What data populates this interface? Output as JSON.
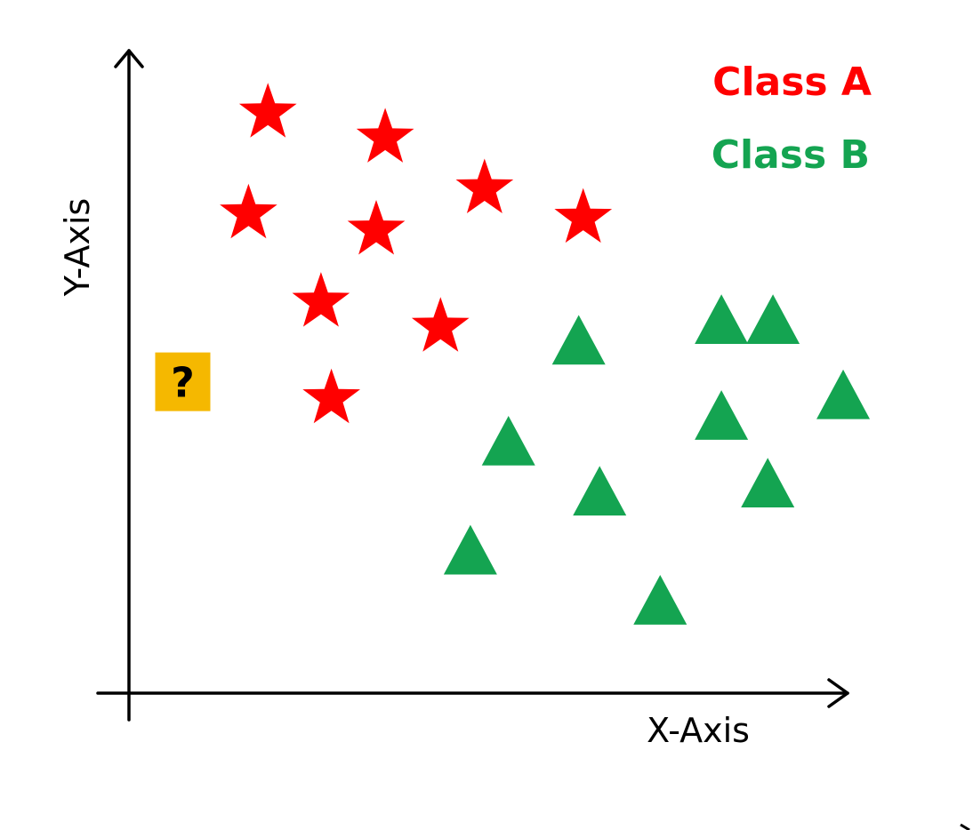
{
  "chart_data": {
    "type": "scatter",
    "title": "",
    "xlabel": "X-Axis",
    "ylabel": "Y-Axis",
    "xlim": [
      0,
      100
    ],
    "ylim": [
      0,
      100
    ],
    "grid": false,
    "legend_position": "top-right",
    "series": [
      {
        "name": "Class A",
        "marker": "star",
        "color": "#ff0000",
        "points": [
          {
            "x": 18.6,
            "y": 92.6
          },
          {
            "x": 34.3,
            "y": 88.6
          },
          {
            "x": 16.0,
            "y": 76.5
          },
          {
            "x": 33.1,
            "y": 73.9
          },
          {
            "x": 47.6,
            "y": 80.5
          },
          {
            "x": 60.8,
            "y": 75.8
          },
          {
            "x": 25.7,
            "y": 62.4
          },
          {
            "x": 41.7,
            "y": 58.4
          },
          {
            "x": 27.1,
            "y": 47.0
          }
        ]
      },
      {
        "name": "Class B",
        "marker": "triangle",
        "color": "#14a451",
        "points": [
          {
            "x": 60.2,
            "y": 56.4
          },
          {
            "x": 79.3,
            "y": 59.7
          },
          {
            "x": 86.2,
            "y": 59.7
          },
          {
            "x": 95.6,
            "y": 47.7
          },
          {
            "x": 79.3,
            "y": 44.4
          },
          {
            "x": 50.8,
            "y": 40.3
          },
          {
            "x": 63.0,
            "y": 32.3
          },
          {
            "x": 85.5,
            "y": 33.6
          },
          {
            "x": 45.7,
            "y": 22.9
          },
          {
            "x": 71.1,
            "y": 14.9
          }
        ]
      }
    ],
    "query_point": {
      "label": "?",
      "x": 7.2,
      "y": 49.7,
      "color": "#f5b800"
    }
  }
}
